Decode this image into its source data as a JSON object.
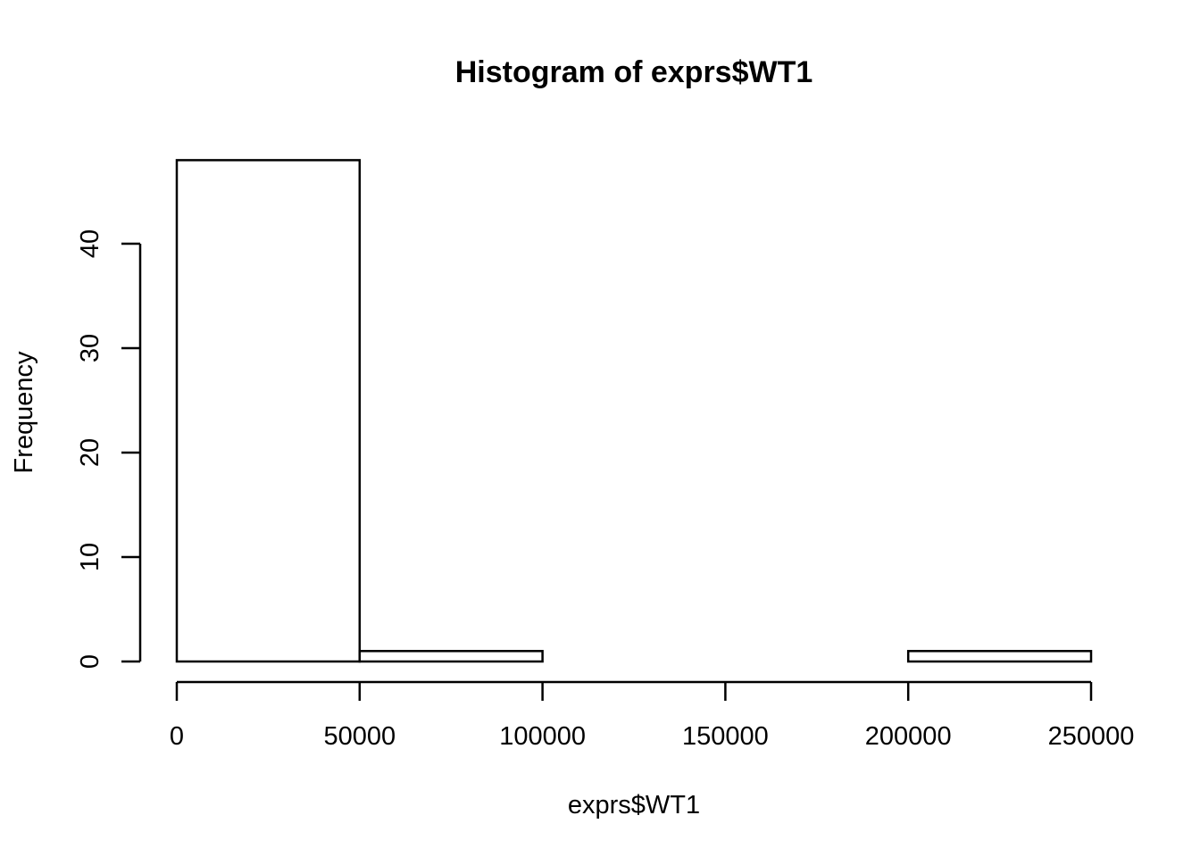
{
  "chart_data": {
    "type": "bar",
    "title": "Histogram of exprs$WT1",
    "xlabel": "exprs$WT1",
    "ylabel": "Frequency",
    "bins": [
      {
        "from": 0,
        "to": 50000,
        "count": 48
      },
      {
        "from": 50000,
        "to": 100000,
        "count": 1
      },
      {
        "from": 100000,
        "to": 150000,
        "count": 0
      },
      {
        "from": 150000,
        "to": 200000,
        "count": 0
      },
      {
        "from": 200000,
        "to": 250000,
        "count": 1
      }
    ],
    "xlim": [
      0,
      250000
    ],
    "ylim": [
      0,
      48
    ],
    "x_ticks": [
      0,
      50000,
      100000,
      150000,
      200000,
      250000
    ],
    "x_tick_labels": [
      "0",
      "50000",
      "100000",
      "150000",
      "200000",
      "250000"
    ],
    "y_ticks": [
      0,
      10,
      20,
      30,
      40
    ],
    "y_tick_labels": [
      "0",
      "10",
      "20",
      "30",
      "40"
    ],
    "grid": false,
    "legend": "none",
    "bar_fill": "#ffffff",
    "stroke_color": "#000000"
  }
}
